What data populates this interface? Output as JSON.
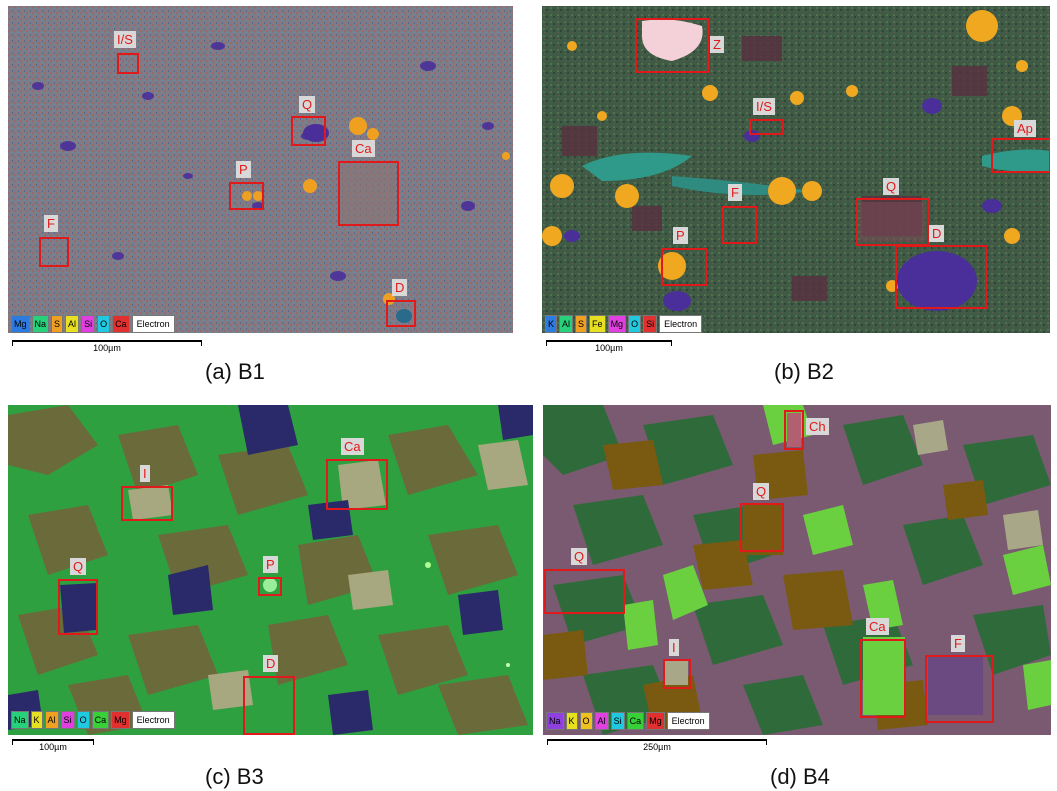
{
  "panels": [
    {
      "caption": "(a) B1",
      "scale_label": "100µm",
      "legend": [
        {
          "text": "Mg",
          "color": "#2b7be0"
        },
        {
          "text": "Na",
          "color": "#27d07a"
        },
        {
          "text": "S",
          "color": "#f0a020"
        },
        {
          "text": "Al",
          "color": "#e6e020"
        },
        {
          "text": "Si",
          "color": "#e040e0"
        },
        {
          "text": "O",
          "color": "#20c8e0"
        },
        {
          "text": "Ca",
          "color": "#e03030"
        },
        {
          "text": "Electron",
          "color": "#ffffff"
        }
      ],
      "labels": [
        "I/S",
        "Q",
        "Ca",
        "P",
        "F",
        "D"
      ]
    },
    {
      "caption": "(b) B2",
      "scale_label": "100µm",
      "legend": [
        {
          "text": "K",
          "color": "#2b7be0"
        },
        {
          "text": "Al",
          "color": "#27d07a"
        },
        {
          "text": "S",
          "color": "#f0a020"
        },
        {
          "text": "Fe",
          "color": "#e6e020"
        },
        {
          "text": "Mg",
          "color": "#e040e0"
        },
        {
          "text": "O",
          "color": "#20c8e0"
        },
        {
          "text": "Si",
          "color": "#e03030"
        },
        {
          "text": "Electron",
          "color": "#ffffff"
        }
      ],
      "labels": [
        "Z",
        "I/S",
        "Ap",
        "F",
        "Q",
        "D",
        "P"
      ]
    },
    {
      "caption": "(c) B3",
      "scale_label": "100µm",
      "legend": [
        {
          "text": "Na",
          "color": "#27d07a"
        },
        {
          "text": "K",
          "color": "#e6e020"
        },
        {
          "text": "Al",
          "color": "#f0a020"
        },
        {
          "text": "Si",
          "color": "#e040e0"
        },
        {
          "text": "O",
          "color": "#20c8e0"
        },
        {
          "text": "Ca",
          "color": "#38d038"
        },
        {
          "text": "Mg",
          "color": "#e03030"
        },
        {
          "text": "Electron",
          "color": "#ffffff"
        }
      ],
      "labels": [
        "Ca",
        "I",
        "P",
        "Q",
        "D"
      ]
    },
    {
      "caption": "(d) B4",
      "scale_label": "250µm",
      "legend": [
        {
          "text": "Na",
          "color": "#9040e0"
        },
        {
          "text": "K",
          "color": "#e6e020"
        },
        {
          "text": "O",
          "color": "#f0c020"
        },
        {
          "text": "Al",
          "color": "#e040e0"
        },
        {
          "text": "Si",
          "color": "#20c8e0"
        },
        {
          "text": "Ca",
          "color": "#38d038"
        },
        {
          "text": "Mg",
          "color": "#e03030"
        },
        {
          "text": "Electron",
          "color": "#ffffff"
        }
      ],
      "labels": [
        "Ch",
        "Q",
        "Q",
        "I",
        "Ca",
        "F"
      ]
    }
  ]
}
